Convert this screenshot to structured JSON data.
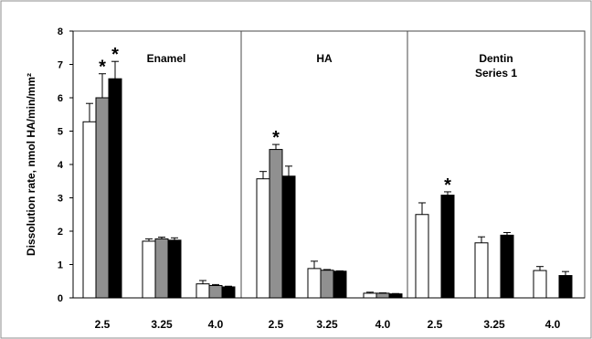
{
  "chart_data": {
    "type": "bar",
    "ylabel": "Dissolution rate, nmol HA/min/mm²",
    "ylim": [
      0,
      8
    ],
    "yticks": [
      "0",
      "1",
      "2",
      "3",
      "4",
      "5",
      "6",
      "7",
      "8"
    ],
    "grid": false,
    "series_colors": [
      "#ffffff",
      "#909090",
      "#000000"
    ],
    "panels": [
      {
        "name": "Enamel",
        "categories": [
          "2.5",
          "3.25",
          "4.0"
        ],
        "groups": [
          [
            {
              "value": 5.28,
              "error": 0.55
            },
            {
              "value": 6.0,
              "error": 0.72,
              "star": "*"
            },
            {
              "value": 6.57,
              "error": 0.52,
              "star": "*"
            }
          ],
          [
            {
              "value": 1.7,
              "error": 0.07
            },
            {
              "value": 1.77,
              "error": 0.05
            },
            {
              "value": 1.73,
              "error": 0.07
            }
          ],
          [
            {
              "value": 0.42,
              "error": 0.1
            },
            {
              "value": 0.37,
              "error": 0.03
            },
            {
              "value": 0.33,
              "error": 0.02
            }
          ]
        ]
      },
      {
        "name": "HA",
        "categories": [
          "2.5",
          "3.25",
          "4.0"
        ],
        "groups": [
          [
            {
              "value": 3.57,
              "error": 0.22
            },
            {
              "value": 4.45,
              "error": 0.15,
              "star": "*"
            },
            {
              "value": 3.65,
              "error": 0.3
            }
          ],
          [
            {
              "value": 0.88,
              "error": 0.22
            },
            {
              "value": 0.83,
              "error": 0.02
            },
            {
              "value": 0.8,
              "error": 0.01
            }
          ],
          [
            {
              "value": 0.14,
              "error": 0.03
            },
            {
              "value": 0.14,
              "error": 0.01
            },
            {
              "value": 0.12,
              "error": 0.01
            }
          ]
        ]
      },
      {
        "name": "Dentin",
        "subtitle": "Series 1",
        "categories": [
          "2.5",
          "3.25",
          "4.0"
        ],
        "groups": [
          [
            {
              "value": 2.5,
              "error": 0.35
            },
            null,
            {
              "value": 3.08,
              "error": 0.1,
              "star": "*"
            }
          ],
          [
            {
              "value": 1.65,
              "error": 0.18
            },
            null,
            {
              "value": 1.88,
              "error": 0.08
            }
          ],
          [
            {
              "value": 0.82,
              "error": 0.12
            },
            null,
            {
              "value": 0.67,
              "error": 0.12
            }
          ]
        ]
      }
    ]
  }
}
